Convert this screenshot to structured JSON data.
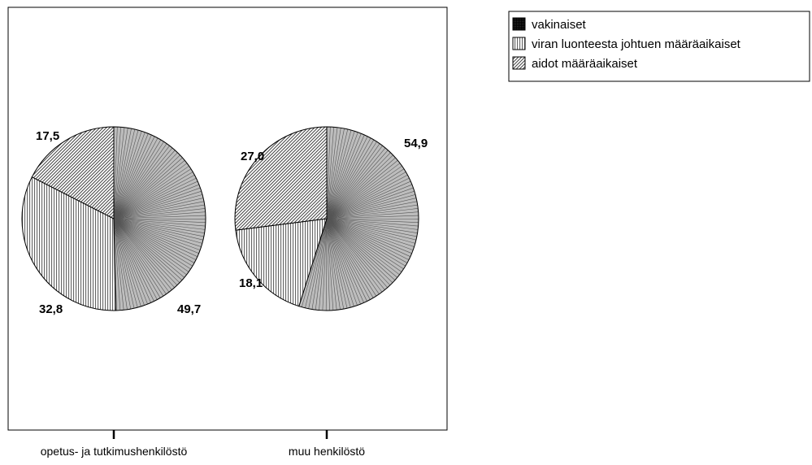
{
  "chart_data": {
    "type": "pie",
    "title": "",
    "legend_position": "top-right",
    "series": [
      {
        "name": "vakinaiset",
        "pattern": "radial-lines",
        "color": "#000000"
      },
      {
        "name": "viran luonteesta johtuen määräaikaiset",
        "pattern": "vertical-lines",
        "color": "#000000"
      },
      {
        "name": "aidot määräaikaiset",
        "pattern": "diagonal-lines",
        "color": "#000000"
      }
    ],
    "pies": [
      {
        "category": "opetus- ja tutkimushenkilöstö",
        "values": [
          49.7,
          32.8,
          17.5
        ],
        "value_labels": [
          "49,7",
          "32,8",
          "17,5"
        ]
      },
      {
        "category": "muu henkilöstö",
        "values": [
          54.9,
          18.1,
          27.0
        ],
        "value_labels": [
          "54,9",
          "18,1",
          "27,0"
        ]
      }
    ]
  }
}
